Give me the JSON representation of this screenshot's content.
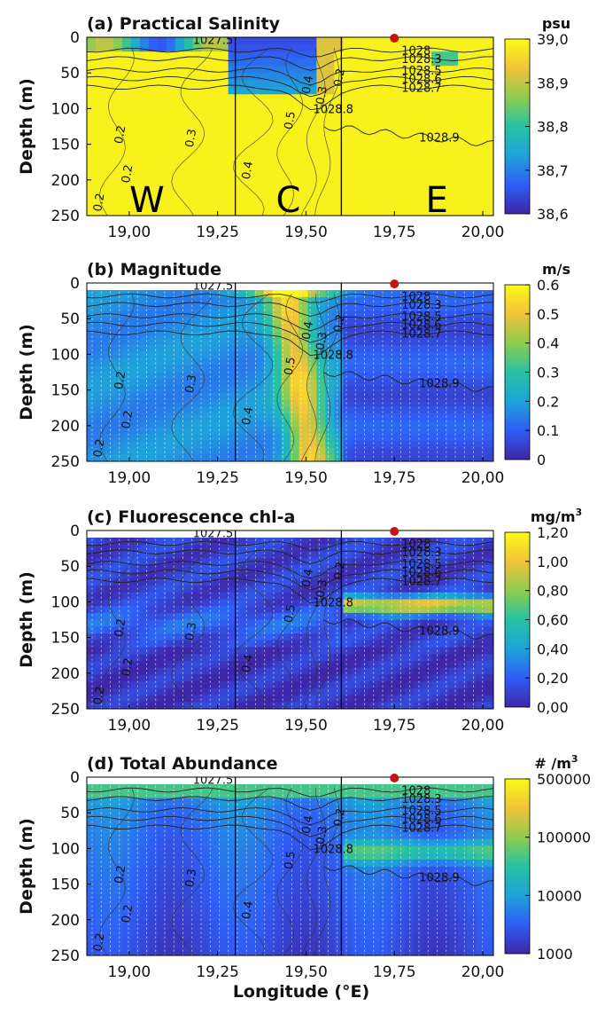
{
  "x_axis": {
    "label": "Longitude (°E)",
    "ticks": [
      "19,00",
      "19,25",
      "19,50",
      "19,75",
      "20,00"
    ],
    "tick_values": [
      19.0,
      19.25,
      19.5,
      19.75,
      20.0
    ]
  },
  "y_axis": {
    "label": "Depth (m)",
    "ticks": [
      "0",
      "50",
      "100",
      "150",
      "200",
      "250"
    ],
    "tick_values": [
      0,
      50,
      100,
      150,
      200,
      250
    ]
  },
  "colors": {
    "colormap": [
      "#3e26a8",
      "#2f5ef5",
      "#1ea3d9",
      "#26c2a3",
      "#8fcc4f",
      "#f2c23a",
      "#f9fb15"
    ],
    "contour": "#222222",
    "marker": "#cc1111"
  },
  "region_labels": [
    "W",
    "C",
    "E"
  ],
  "boundary_lon": [
    19.3,
    19.6
  ],
  "station_lon": 19.75,
  "panels": [
    {
      "title": "(a) Practical Salinity",
      "unit": "psu",
      "unit_sup": "",
      "cbar_ticks": [
        "39,0",
        "38,9",
        "38,8",
        "38,7",
        "38,6"
      ],
      "field": "salinity",
      "show_regions": true
    },
    {
      "title": "(b) Magnitude",
      "unit": "m/s",
      "unit_sup": "",
      "cbar_ticks": [
        "0.6",
        "0.5",
        "0.4",
        "0.3",
        "0.2",
        "0.1",
        "0"
      ],
      "field": "magnitude",
      "show_regions": false
    },
    {
      "title": "(c) Fluorescence chl-a",
      "unit": "mg/m",
      "unit_sup": "3",
      "cbar_ticks": [
        "1,20",
        "1,00",
        "0,80",
        "0,60",
        "0,40",
        "0,20",
        "0,00"
      ],
      "field": "chl",
      "show_regions": false
    },
    {
      "title": "(d) Total Abundance",
      "unit": "# /m",
      "unit_sup": "3",
      "cbar_ticks": [
        "500000",
        "100000",
        "10000",
        "1000"
      ],
      "field": "abundance",
      "show_regions": false
    }
  ],
  "chart_data": {
    "type": "heatmap",
    "panel_count": 4,
    "x_range": [
      18.88,
      20.03
    ],
    "y_range": [
      0,
      250
    ],
    "y_reversed": true,
    "contours": {
      "density": [
        {
          "label": "1027.5",
          "lon": 19.18,
          "depth": 3
        },
        {
          "label": "1028",
          "lon": 19.77,
          "depth": 18
        },
        {
          "label": "1028.3",
          "lon": 19.77,
          "depth": 30
        },
        {
          "label": "1028.5",
          "lon": 19.77,
          "depth": 46
        },
        {
          "label": "1028.6",
          "lon": 19.77,
          "depth": 58
        },
        {
          "label": "1028.7",
          "lon": 19.77,
          "depth": 70
        },
        {
          "label": "1028.8",
          "lon": 19.52,
          "depth": 100
        },
        {
          "label": "1028.9",
          "lon": 19.82,
          "depth": 140
        }
      ],
      "velocity": [
        {
          "label": "0.2",
          "lon": 18.98,
          "depth": 150
        },
        {
          "label": "0.2",
          "lon": 19.0,
          "depth": 205
        },
        {
          "label": "0.2",
          "lon": 18.92,
          "depth": 245
        },
        {
          "label": "0.3",
          "lon": 19.18,
          "depth": 155
        },
        {
          "label": "0.4",
          "lon": 19.34,
          "depth": 200
        },
        {
          "label": "0.5",
          "lon": 19.46,
          "depth": 130
        },
        {
          "label": "0.4",
          "lon": 19.51,
          "depth": 80
        },
        {
          "label": "0.3",
          "lon": 19.55,
          "depth": 95
        },
        {
          "label": "0.2",
          "lon": 19.6,
          "depth": 70
        }
      ]
    }
  }
}
